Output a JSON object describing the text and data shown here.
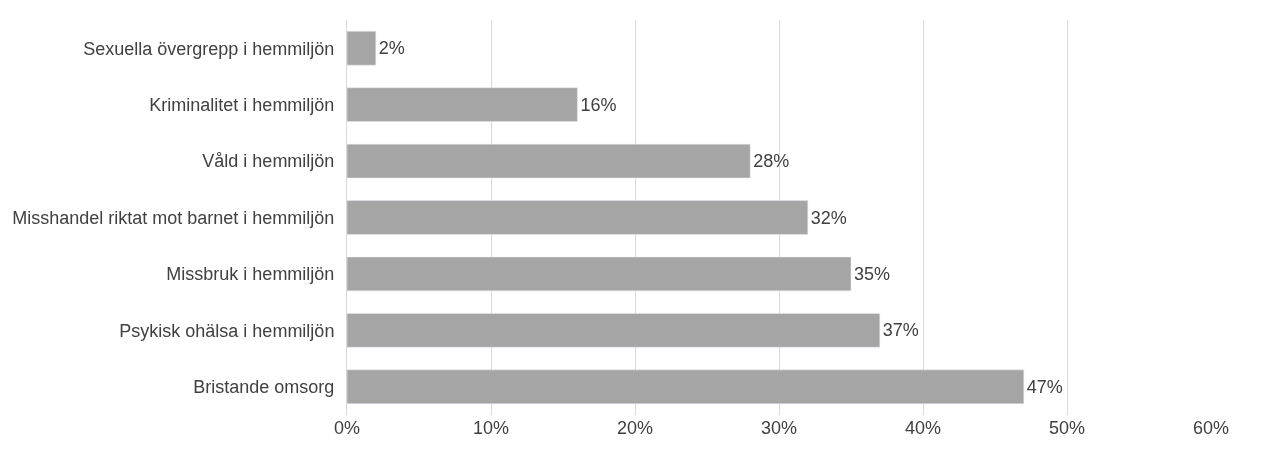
{
  "chart_data": {
    "type": "bar",
    "orientation": "horizontal",
    "categories": [
      "Sexuella övergrepp i hemmiljön",
      "Kriminalitet i hemmiljön",
      "Våld i hemmiljön",
      "Misshandel riktat mot barnet i hemmiljön",
      "Missbruk i hemmiljön",
      "Psykisk ohälsa i hemmiljön",
      "Bristande omsorg"
    ],
    "values": [
      2,
      16,
      28,
      32,
      35,
      37,
      47
    ],
    "value_labels": [
      "2%",
      "16%",
      "28%",
      "32%",
      "35%",
      "37%",
      "47%"
    ],
    "color": "#a5a5a5",
    "xlim": [
      0,
      60
    ],
    "xticks": [
      {
        "value": 0,
        "label": "0%"
      },
      {
        "value": 10,
        "label": "10%"
      },
      {
        "value": 20,
        "label": "20%"
      },
      {
        "value": 30,
        "label": "30%"
      },
      {
        "value": 40,
        "label": "40%"
      },
      {
        "value": 50,
        "label": "50%"
      },
      {
        "value": 60,
        "label": "60%"
      }
    ],
    "grid": "x"
  }
}
